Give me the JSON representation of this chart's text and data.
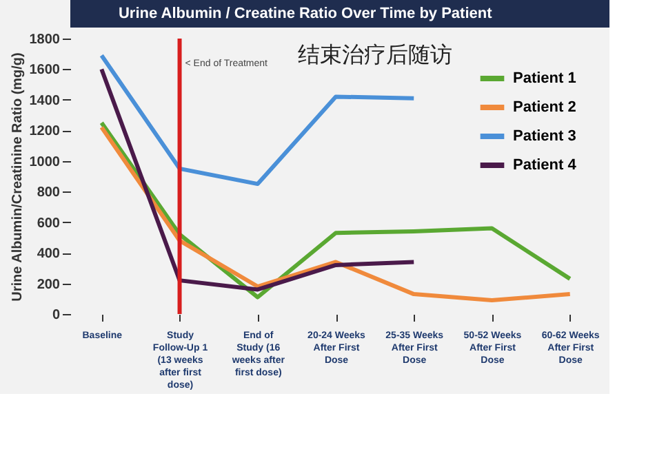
{
  "chart_data": {
    "type": "line",
    "title": "Urine Albumin / Creatine Ratio Over Time by Patient",
    "ylabel": "Urine Albumin/Creatinine Ratio (mg/g)",
    "categories": [
      "Baseline",
      "Study Follow-Up 1 (13 weeks after first dose)",
      "End of Study (16 weeks after first dose)",
      "20-24 Weeks After First Dose",
      "25-35 Weeks After First Dose",
      "50-52 Weeks After First Dose",
      "60-62 Weeks After First Dose"
    ],
    "series": [
      {
        "name": "Patient 1",
        "color": "#5aa832",
        "values": [
          1250,
          520,
          110,
          530,
          540,
          560,
          230
        ]
      },
      {
        "name": "Patient 2",
        "color": "#f08a3c",
        "values": [
          1220,
          480,
          180,
          340,
          130,
          90,
          130
        ]
      },
      {
        "name": "Patient 3",
        "color": "#4a90d8",
        "values": [
          1690,
          950,
          850,
          1420,
          1410,
          null,
          null
        ]
      },
      {
        "name": "Patient 4",
        "color": "#4a1a4a",
        "values": [
          1600,
          220,
          160,
          320,
          340,
          null,
          null
        ]
      }
    ],
    "ylim": [
      0,
      1800
    ],
    "yticks": [
      0,
      200,
      400,
      600,
      800,
      1000,
      1200,
      1400,
      1600,
      1800
    ],
    "ref_lines": [
      {
        "axis": "x",
        "value": "Study Follow-Up 1 (13 weeks after first dose)",
        "label": "< End of Treatment",
        "color": "#d81e1e"
      }
    ],
    "annotations": [
      "结束治疗后随访"
    ],
    "legend": "top right",
    "grid": false
  }
}
